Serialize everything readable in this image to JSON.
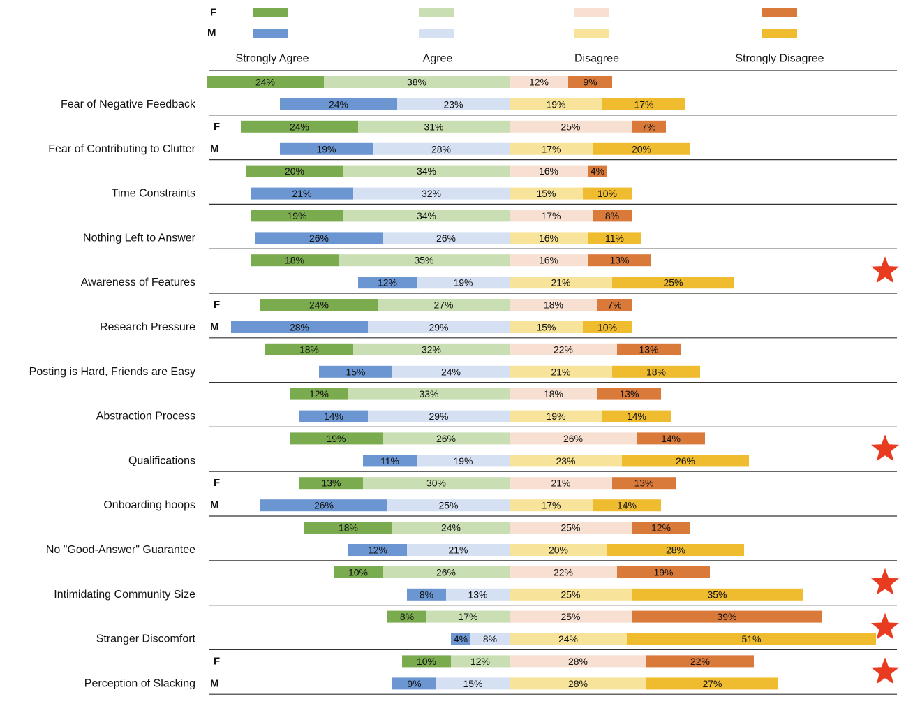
{
  "chart_data": {
    "type": "bar",
    "subtype": "diverging-stacked-horizontal",
    "title": "",
    "legend": {
      "placement": "top",
      "group_labels": [
        "F",
        "M"
      ],
      "categories": [
        "Strongly Agree",
        "Agree",
        "Disagree",
        "Strongly Disagree"
      ]
    },
    "colors": {
      "F": [
        "#7aab4f",
        "#c9deb2",
        "#f7dfd1",
        "#d9793a"
      ],
      "M": [
        "#6b96d1",
        "#d5e0f2",
        "#f8e39a",
        "#efbc2f"
      ]
    },
    "axis_line_color": "#333333",
    "star_color": "#e83b20",
    "items": [
      {
        "label": "Fear of Negative Feedback",
        "show_fm": false,
        "star": false,
        "F": [
          24,
          38,
          12,
          9
        ],
        "M": [
          24,
          23,
          19,
          17
        ]
      },
      {
        "label": "Fear of Contributing to Clutter",
        "show_fm": true,
        "star": false,
        "F": [
          24,
          31,
          25,
          7
        ],
        "M": [
          19,
          28,
          17,
          20
        ]
      },
      {
        "label": "Time Constraints",
        "show_fm": false,
        "star": false,
        "F": [
          20,
          34,
          16,
          4
        ],
        "M": [
          21,
          32,
          15,
          10
        ]
      },
      {
        "label": "Nothing Left to Answer",
        "show_fm": false,
        "star": false,
        "F": [
          19,
          34,
          17,
          8
        ],
        "M": [
          26,
          26,
          16,
          11
        ]
      },
      {
        "label": "Awareness of Features",
        "show_fm": false,
        "star": true,
        "F": [
          18,
          35,
          16,
          13
        ],
        "M": [
          12,
          19,
          21,
          25
        ]
      },
      {
        "label": "Research Pressure",
        "show_fm": true,
        "star": false,
        "F": [
          24,
          27,
          18,
          7
        ],
        "M": [
          28,
          29,
          15,
          10
        ]
      },
      {
        "label": "Posting is Hard, Friends are Easy",
        "show_fm": false,
        "star": false,
        "F": [
          18,
          32,
          22,
          13
        ],
        "M": [
          15,
          24,
          21,
          18
        ]
      },
      {
        "label": "Abstraction Process",
        "show_fm": false,
        "star": false,
        "F": [
          12,
          33,
          18,
          13
        ],
        "M": [
          14,
          29,
          19,
          14
        ]
      },
      {
        "label": "Qualifications",
        "show_fm": false,
        "star": true,
        "F": [
          19,
          26,
          26,
          14
        ],
        "M": [
          11,
          19,
          23,
          26
        ]
      },
      {
        "label": "Onboarding hoops",
        "show_fm": true,
        "star": false,
        "F": [
          13,
          30,
          21,
          13
        ],
        "M": [
          26,
          25,
          17,
          14
        ]
      },
      {
        "label": "No \"Good-Answer\" Guarantee",
        "show_fm": false,
        "star": false,
        "F": [
          18,
          24,
          25,
          12
        ],
        "M": [
          12,
          21,
          20,
          28
        ]
      },
      {
        "label": "Intimidating Community Size",
        "show_fm": false,
        "star": true,
        "F": [
          10,
          26,
          22,
          19
        ],
        "M": [
          8,
          13,
          25,
          35
        ]
      },
      {
        "label": "Stranger Discomfort",
        "show_fm": false,
        "star": true,
        "F": [
          8,
          17,
          25,
          39
        ],
        "M": [
          4,
          8,
          24,
          51
        ]
      },
      {
        "label": "Perception of Slacking",
        "show_fm": true,
        "star": true,
        "F": [
          10,
          12,
          28,
          22
        ],
        "M": [
          9,
          15,
          28,
          27
        ]
      }
    ]
  }
}
